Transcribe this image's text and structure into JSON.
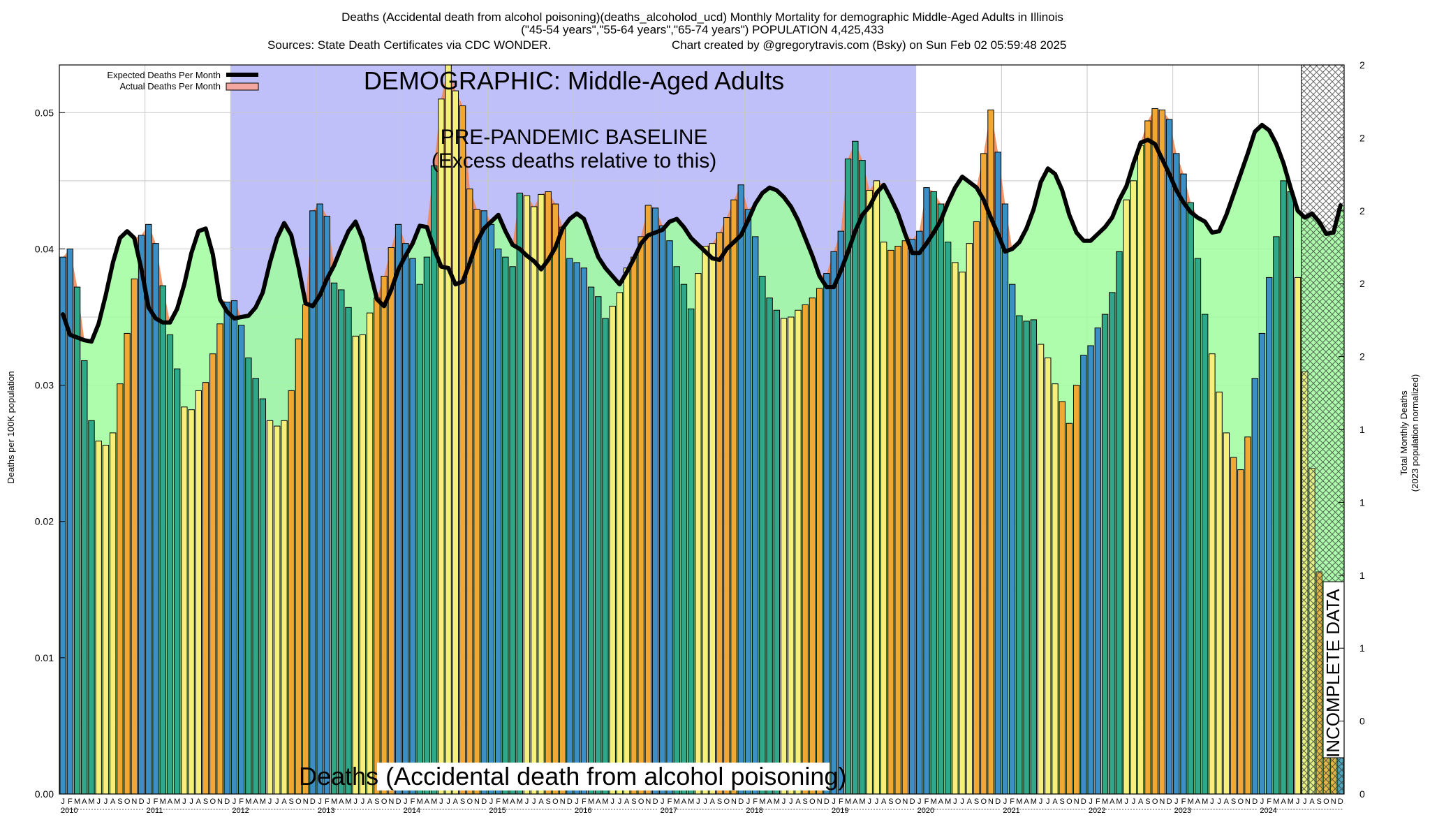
{
  "titles": {
    "line1": "Deaths (Accidental death from alcohol poisoning)(deaths_alcoholod_ucd) Monthly Mortality for demographic Middle-Aged Adults in Illinois",
    "line2": "(\"45-54 years\",\"55-64 years\",\"65-74 years\") POPULATION 4,425,433",
    "line3a": "Sources: State Death Certificates via CDC WONDER.",
    "line3b": "Chart created by @gregorytravis.com (Bsky) on Sun Feb 02 05:59:48 2025"
  },
  "annotations": {
    "demographic": "DEMOGRAPHIC: Middle-Aged Adults",
    "baseline_line1": "PRE-PANDEMIC BASELINE",
    "baseline_line2": "(Excess deaths relative to this)",
    "cause": "Deaths (Accidental death from alcohol poisoning)",
    "incomplete": "INCOMPLETE DATA"
  },
  "legend": {
    "expected": "Expected Deaths Per Month",
    "actual": "Actual Deaths Per Month"
  },
  "colors": {
    "baseline_shade": "#bfbffa",
    "expected_fill": "#9ffd9f",
    "expected_line": "#000000",
    "excess_fill": "#f08a5a",
    "winter_bar": "#3c8fc4",
    "spring_bar": "#2fa88a",
    "summer_bar": "#f5f07a",
    "autumn_bar": "#f0a833"
  },
  "chart_data": {
    "type": "bar",
    "title": "Deaths (Accidental death from alcohol poisoning)(deaths_alcoholod_ucd) Monthly Mortality for demographic Middle-Aged Adults in Illinois",
    "ylabel": "Deaths per 100K population",
    "y2label_line1": "Total Monthly Deaths",
    "y2label_line2": "(2023 population normalized)",
    "ylim": [
      0,
      0.0535
    ],
    "yticks": [
      "0.00",
      "0.01",
      "0.02",
      "0.03",
      "0.04",
      "0.05"
    ],
    "y2ticks": [
      "0",
      "0",
      "1",
      "1",
      "1",
      "1",
      "2",
      "2",
      "2",
      "2",
      "2"
    ],
    "month_letters": [
      "J",
      "F",
      "M",
      "A",
      "M",
      "J",
      "J",
      "A",
      "S",
      "O",
      "N",
      "D"
    ],
    "years": [
      "2010",
      "2011",
      "2012",
      "2013",
      "2014",
      "2015",
      "2016",
      "2017",
      "2018",
      "2019",
      "2020",
      "2021",
      "2022",
      "2023",
      "2024"
    ],
    "baseline_period": [
      "2012-01",
      "2019-12"
    ],
    "incomplete_from": "2024-07",
    "grid": true,
    "legend_position": "top-left",
    "series": [
      {
        "name": "Actual Deaths Per Month",
        "values": [
          0.0394,
          0.04,
          0.0372,
          0.0318,
          0.0274,
          0.0259,
          0.0256,
          0.0265,
          0.0301,
          0.0338,
          0.0378,
          0.041,
          0.0418,
          0.0404,
          0.0373,
          0.0337,
          0.0312,
          0.0284,
          0.0282,
          0.0296,
          0.0302,
          0.0323,
          0.0345,
          0.0361,
          0.0362,
          0.0344,
          0.032,
          0.0305,
          0.029,
          0.0274,
          0.027,
          0.0274,
          0.0296,
          0.0334,
          0.0359,
          0.0428,
          0.0433,
          0.0424,
          0.0375,
          0.037,
          0.0357,
          0.0336,
          0.0337,
          0.0353,
          0.0364,
          0.038,
          0.0401,
          0.0418,
          0.0404,
          0.0393,
          0.0374,
          0.0394,
          0.0461,
          0.051,
          0.0535,
          0.0516,
          0.0505,
          0.0444,
          0.0429,
          0.0428,
          0.0418,
          0.04,
          0.0394,
          0.0387,
          0.0441,
          0.0439,
          0.0431,
          0.044,
          0.0442,
          0.0433,
          0.0416,
          0.0393,
          0.039,
          0.0386,
          0.0372,
          0.0365,
          0.0349,
          0.0358,
          0.0368,
          0.0386,
          0.0394,
          0.0409,
          0.0432,
          0.043,
          0.0417,
          0.0406,
          0.0387,
          0.0374,
          0.0356,
          0.0382,
          0.0402,
          0.0404,
          0.0412,
          0.0423,
          0.0436,
          0.0447,
          0.0429,
          0.0409,
          0.038,
          0.0364,
          0.0355,
          0.0349,
          0.035,
          0.0355,
          0.0359,
          0.0364,
          0.0371,
          0.0382,
          0.0398,
          0.0413,
          0.0466,
          0.0479,
          0.0465,
          0.0443,
          0.045,
          0.0405,
          0.0399,
          0.0402,
          0.0406,
          0.0407,
          0.0413,
          0.0445,
          0.0442,
          0.0433,
          0.0405,
          0.039,
          0.0383,
          0.0404,
          0.042,
          0.047,
          0.0502,
          0.0471,
          0.0433,
          0.0374,
          0.0351,
          0.0347,
          0.0348,
          0.033,
          0.032,
          0.0301,
          0.0288,
          0.0272,
          0.03,
          0.0322,
          0.0329,
          0.0342,
          0.0352,
          0.0368,
          0.0398,
          0.0436,
          0.045,
          0.0476,
          0.0494,
          0.0503,
          0.0502,
          0.0495,
          0.047,
          0.0455,
          0.0434,
          0.0393,
          0.0352,
          0.0323,
          0.0295,
          0.0265,
          0.0247,
          0.0238,
          0.0262,
          0.0305,
          0.0338,
          0.0379,
          0.0409,
          0.045,
          0.0442,
          0.0379,
          0.031,
          0.0239,
          0.0163,
          0.0148,
          0.0096,
          0.0037
        ]
      },
      {
        "name": "Expected Deaths Per Month",
        "values": [
          0.0352,
          0.0337,
          0.0335,
          0.0333,
          0.0332,
          0.0345,
          0.0366,
          0.039,
          0.0408,
          0.0413,
          0.0408,
          0.0385,
          0.0357,
          0.0349,
          0.0346,
          0.0346,
          0.0356,
          0.0374,
          0.0397,
          0.0413,
          0.0415,
          0.0396,
          0.0363,
          0.0354,
          0.0349,
          0.035,
          0.0351,
          0.0357,
          0.0368,
          0.039,
          0.0408,
          0.0419,
          0.041,
          0.0387,
          0.036,
          0.0358,
          0.0366,
          0.0378,
          0.0388,
          0.0401,
          0.0413,
          0.042,
          0.0407,
          0.0384,
          0.0363,
          0.0358,
          0.037,
          0.0385,
          0.0395,
          0.0404,
          0.0417,
          0.0416,
          0.04,
          0.0387,
          0.0386,
          0.0374,
          0.0376,
          0.039,
          0.0405,
          0.0415,
          0.042,
          0.0425,
          0.0413,
          0.0403,
          0.04,
          0.0395,
          0.0391,
          0.0385,
          0.0392,
          0.0401,
          0.0415,
          0.0422,
          0.0426,
          0.0422,
          0.0408,
          0.0394,
          0.0386,
          0.038,
          0.0374,
          0.0383,
          0.0393,
          0.0404,
          0.041,
          0.0412,
          0.0414,
          0.042,
          0.0422,
          0.0416,
          0.0408,
          0.0403,
          0.0398,
          0.0393,
          0.0392,
          0.04,
          0.0405,
          0.041,
          0.0421,
          0.0433,
          0.0441,
          0.0445,
          0.0443,
          0.0438,
          0.0431,
          0.0421,
          0.0408,
          0.0395,
          0.038,
          0.0372,
          0.0372,
          0.0384,
          0.0398,
          0.0413,
          0.0425,
          0.0431,
          0.0441,
          0.0447,
          0.0437,
          0.0426,
          0.0411,
          0.0397,
          0.0397,
          0.0404,
          0.0412,
          0.0421,
          0.0434,
          0.0445,
          0.0453,
          0.0449,
          0.0445,
          0.0436,
          0.0423,
          0.0411,
          0.0398,
          0.04,
          0.0405,
          0.0415,
          0.0429,
          0.0449,
          0.0459,
          0.0455,
          0.0443,
          0.0425,
          0.0412,
          0.0406,
          0.0406,
          0.0411,
          0.0416,
          0.0423,
          0.0436,
          0.0446,
          0.0463,
          0.0478,
          0.048,
          0.0477,
          0.0466,
          0.0455,
          0.0443,
          0.0434,
          0.0427,
          0.0423,
          0.042,
          0.0412,
          0.0413,
          0.0425,
          0.044,
          0.0455,
          0.047,
          0.0486,
          0.0491,
          0.0487,
          0.0477,
          0.0463,
          0.0445,
          0.0428,
          0.0423,
          0.0426,
          0.042,
          0.0411,
          0.0412,
          0.0432
        ]
      }
    ]
  }
}
